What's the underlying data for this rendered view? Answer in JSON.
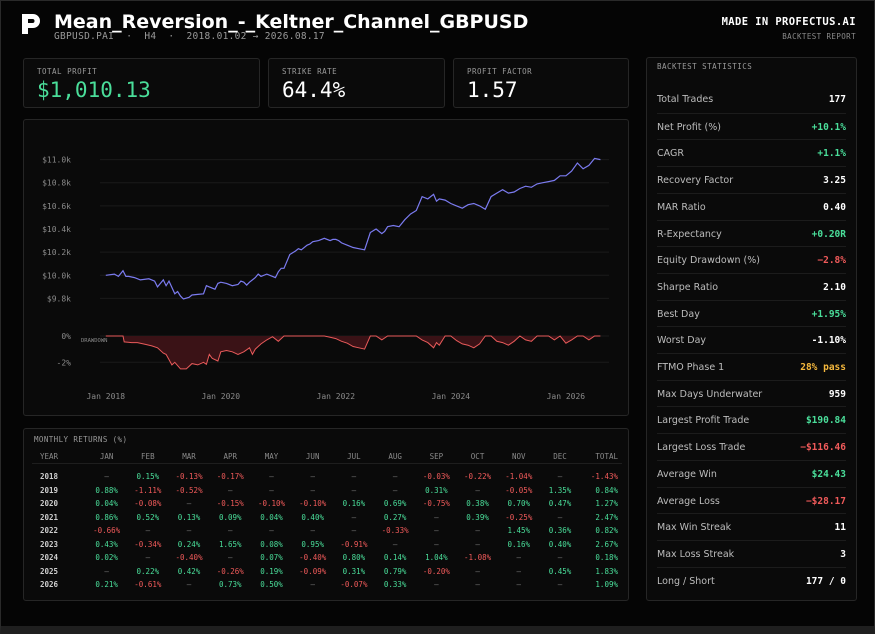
{
  "header": {
    "title": "Mean_Reversion_-_Keltner_Channel_GBPUSD",
    "symbol": "GBPUSD.PAI",
    "timeframe": "H4",
    "dates": "2018.01.02 → 2026.08.17",
    "made_in": "MADE IN PROFECTUS.AI",
    "report": "BACKTEST REPORT"
  },
  "kpis": [
    {
      "label": "TOTAL PROFIT",
      "value": "$1,010.13"
    },
    {
      "label": "STRIKE RATE",
      "value": "64.4%"
    },
    {
      "label": "PROFIT FACTOR",
      "value": "1.57"
    }
  ],
  "colors": {
    "equity": "#7b7bf0",
    "drawdown": "#e85a5a",
    "positive": "#4ade9a",
    "negative": "#f05a5a",
    "warning": "#f5b83d"
  },
  "stats": {
    "title": "BACKTEST STATISTICS",
    "rows": [
      {
        "label": "Total Trades",
        "value": "177",
        "tone": ""
      },
      {
        "label": "Net Profit (%)",
        "value": "+10.1%",
        "tone": "pos"
      },
      {
        "label": "CAGR",
        "value": "+1.1%",
        "tone": "pos"
      },
      {
        "label": "Recovery Factor",
        "value": "3.25",
        "tone": ""
      },
      {
        "label": "MAR Ratio",
        "value": "0.40",
        "tone": ""
      },
      {
        "label": "R-Expectancy",
        "value": "+0.20R",
        "tone": "pos"
      },
      {
        "label": "Equity Drawdown (%)",
        "value": "−2.8%",
        "tone": "neg"
      },
      {
        "label": "Sharpe Ratio",
        "value": "2.10",
        "tone": ""
      },
      {
        "label": "Best Day",
        "value": "+1.95%",
        "tone": "pos"
      },
      {
        "label": "Worst Day",
        "value": "-1.10%",
        "tone": ""
      },
      {
        "label": "FTMO Phase 1",
        "value": "28% pass",
        "tone": "warn"
      },
      {
        "label": "Max Days Underwater",
        "value": "959",
        "tone": ""
      },
      {
        "label": "Largest Profit Trade",
        "value": "$190.84",
        "tone": "pos"
      },
      {
        "label": "Largest Loss Trade",
        "value": "−$116.46",
        "tone": "neg"
      },
      {
        "label": "Average Win",
        "value": "$24.43",
        "tone": "pos"
      },
      {
        "label": "Average Loss",
        "value": "−$28.17",
        "tone": "neg"
      },
      {
        "label": "Max Win Streak",
        "value": "11",
        "tone": ""
      },
      {
        "label": "Max Loss Streak",
        "value": "3",
        "tone": ""
      },
      {
        "label": "Long / Short",
        "value": "177 / 0",
        "tone": ""
      }
    ]
  },
  "chart_data": [
    {
      "type": "line",
      "title": "",
      "xlabel": "",
      "ylabel": "",
      "ylim": [
        9700,
        11100
      ],
      "xlim": [
        2017.9,
        2026.75
      ],
      "x_ticks": [
        "Jan 2018",
        "Jan 2020",
        "Jan 2022",
        "Jan 2024",
        "Jan 2026"
      ],
      "y_ticks": [
        "$9.8k",
        "$10.0k",
        "$10.2k",
        "$10.4k",
        "$10.6k",
        "$10.8k",
        "$11.0k"
      ],
      "grid": true,
      "series": [
        {
          "x": [
            2018.0,
            2018.15,
            2018.22,
            2018.3,
            2018.35,
            2018.4,
            2018.45,
            2018.5,
            2018.6,
            2018.75,
            2018.85,
            2018.9,
            2019.0,
            2019.05,
            2019.1,
            2019.2,
            2019.25,
            2019.3,
            2019.35,
            2019.45,
            2019.5,
            2019.6,
            2019.7,
            2019.75,
            2019.8,
            2019.9,
            2019.95,
            2020.0,
            2020.1,
            2020.2,
            2020.3,
            2020.35,
            2020.4,
            2020.45,
            2020.5,
            2020.6,
            2020.65,
            2020.7,
            2020.8,
            2020.95,
            2021.0,
            2021.05,
            2021.1,
            2021.2,
            2021.3,
            2021.35,
            2021.4,
            2021.5,
            2021.55,
            2021.6,
            2021.7,
            2021.8,
            2021.9,
            2021.95,
            2022.0,
            2022.05,
            2022.1,
            2022.2,
            2022.3,
            2022.4,
            2022.5,
            2022.6,
            2022.7,
            2022.8,
            2022.85,
            2022.9,
            2023.0,
            2023.1,
            2023.2,
            2023.3,
            2023.4,
            2023.5,
            2023.6,
            2023.7,
            2023.75,
            2023.8,
            2023.9,
            2024.0,
            2024.1,
            2024.2,
            2024.3,
            2024.4,
            2024.5,
            2024.6,
            2024.7,
            2024.8,
            2024.9,
            2025.0,
            2025.1,
            2025.2,
            2025.3,
            2025.4,
            2025.5,
            2025.6,
            2025.7,
            2025.8,
            2025.9,
            2026.0,
            2026.1,
            2026.2,
            2026.3,
            2026.4,
            2026.5,
            2026.6
          ],
          "y": [
            10000,
            10010,
            9990,
            10040,
            9990,
            9990,
            9985,
            9980,
            9960,
            9970,
            9950,
            9900,
            9960,
            9910,
            9950,
            9840,
            9860,
            9820,
            9795,
            9810,
            9830,
            9835,
            9840,
            9910,
            9900,
            9880,
            9930,
            9940,
            9930,
            9910,
            9920,
            9950,
            9940,
            9915,
            9940,
            9980,
            10010,
            9990,
            10010,
            9980,
            10030,
            10060,
            10060,
            10180,
            10210,
            10230,
            10220,
            10260,
            10270,
            10290,
            10300,
            10320,
            10300,
            10310,
            10310,
            10300,
            10280,
            10260,
            10240,
            10230,
            10220,
            10370,
            10400,
            10360,
            10380,
            10420,
            10430,
            10420,
            10480,
            10530,
            10560,
            10680,
            10660,
            10700,
            10640,
            10660,
            10650,
            10620,
            10600,
            10580,
            10610,
            10620,
            10600,
            10570,
            10680,
            10710,
            10740,
            10710,
            10720,
            10750,
            10770,
            10760,
            10790,
            10800,
            10810,
            10820,
            10860,
            10860,
            10900,
            10970,
            10920,
            10950,
            11010,
            11000
          ]
        }
      ]
    },
    {
      "type": "area",
      "title": "",
      "ylim": [
        -3.5,
        0
      ],
      "y_ticks": [
        "0%",
        "-2%"
      ],
      "series": [
        {
          "name": "DRAWDOWN",
          "x": [
            2018.0,
            2018.3,
            2018.32,
            2018.45,
            2018.55,
            2018.6,
            2018.7,
            2018.8,
            2018.9,
            2019.0,
            2019.05,
            2019.15,
            2019.2,
            2019.3,
            2019.4,
            2019.5,
            2019.6,
            2019.7,
            2019.75,
            2019.8,
            2019.85,
            2019.95,
            2020.0,
            2020.1,
            2020.2,
            2020.3,
            2020.4,
            2020.5,
            2020.55,
            2020.6,
            2020.7,
            2020.8,
            2020.9,
            2021.0,
            2021.05,
            2021.1,
            2021.2,
            2021.3,
            2021.4,
            2021.5,
            2021.6,
            2021.7,
            2021.8,
            2021.9,
            2022.0,
            2022.1,
            2022.2,
            2022.3,
            2022.4,
            2022.5,
            2022.6,
            2022.7,
            2022.8,
            2022.9,
            2023.0,
            2023.1,
            2023.2,
            2023.3,
            2023.4,
            2023.5,
            2023.6,
            2023.7,
            2023.75,
            2023.8,
            2023.9,
            2024.0,
            2024.1,
            2024.2,
            2024.3,
            2024.4,
            2024.5,
            2024.6,
            2024.7,
            2024.8,
            2024.9,
            2025.0,
            2025.1,
            2025.2,
            2025.3,
            2025.4,
            2025.5,
            2025.6,
            2025.7,
            2025.8,
            2025.9,
            2026.0,
            2026.1,
            2026.2,
            2026.3,
            2026.4,
            2026.5,
            2026.6
          ],
          "y": [
            0,
            0,
            -0.45,
            -0.5,
            -0.5,
            -0.55,
            -0.65,
            -0.75,
            -0.9,
            -1.3,
            -1.4,
            -2.2,
            -2.0,
            -2.5,
            -2.5,
            -2.1,
            -2.2,
            -2.0,
            -2.15,
            -1.4,
            -1.7,
            -1.9,
            -1.2,
            -1.1,
            -1.2,
            -1.4,
            -1.2,
            -0.9,
            -1.4,
            -1.0,
            -0.6,
            -0.3,
            -0.05,
            -0.4,
            -0.2,
            0,
            0,
            0,
            0,
            0,
            0,
            0,
            0,
            -0.1,
            -0.2,
            -0.4,
            -0.55,
            -0.8,
            -0.9,
            -1.0,
            0,
            0,
            -0.3,
            0,
            0,
            0,
            0,
            0,
            0,
            -0.3,
            -0.5,
            -0.9,
            -0.5,
            -0.7,
            0,
            0,
            -0.35,
            -0.6,
            -0.7,
            -0.9,
            -0.6,
            0,
            0,
            -0.4,
            -0.5,
            -0.7,
            -0.4,
            0,
            -0.3,
            -0.4,
            0,
            0,
            0,
            -0.3,
            0,
            -0.55,
            -0.3,
            0,
            0,
            -0.3,
            0,
            0
          ]
        }
      ]
    },
    {
      "type": "table",
      "title": "MONTHLY RETURNS (%)",
      "headers": [
        "YEAR",
        "JAN",
        "FEB",
        "MAR",
        "APR",
        "MAY",
        "JUN",
        "JUL",
        "AUG",
        "SEP",
        "OCT",
        "NOV",
        "DEC",
        "TOTAL"
      ],
      "rows": [
        [
          "2018",
          "—",
          "0.15%",
          "-0.13%",
          "-0.17%",
          "—",
          "—",
          "—",
          "—",
          "-0.03%",
          "-0.22%",
          "-1.04%",
          "—",
          "-1.43%"
        ],
        [
          "2019",
          "0.88%",
          "-1.11%",
          "-0.52%",
          "—",
          "—",
          "—",
          "—",
          "—",
          "0.31%",
          "—",
          "-0.05%",
          "1.35%",
          "0.84%"
        ],
        [
          "2020",
          "0.04%",
          "-0.08%",
          "—",
          "-0.15%",
          "-0.10%",
          "-0.10%",
          "0.16%",
          "0.69%",
          "-0.75%",
          "0.38%",
          "0.70%",
          "0.47%",
          "1.27%"
        ],
        [
          "2021",
          "0.86%",
          "0.52%",
          "0.13%",
          "0.09%",
          "0.04%",
          "0.40%",
          "—",
          "0.27%",
          "—",
          "0.39%",
          "-0.25%",
          "—",
          "2.47%"
        ],
        [
          "2022",
          "-0.66%",
          "—",
          "—",
          "—",
          "—",
          "—",
          "—",
          "-0.33%",
          "—",
          "—",
          "1.45%",
          "0.36%",
          "0.82%"
        ],
        [
          "2023",
          "0.43%",
          "-0.34%",
          "0.24%",
          "1.65%",
          "0.08%",
          "0.95%",
          "-0.91%",
          "—",
          "—",
          "—",
          "0.16%",
          "0.40%",
          "2.67%"
        ],
        [
          "2024",
          "0.02%",
          "—",
          "-0.40%",
          "—",
          "0.07%",
          "-0.40%",
          "0.80%",
          "0.14%",
          "1.04%",
          "-1.08%",
          "—",
          "—",
          "0.18%"
        ],
        [
          "2025",
          "—",
          "0.22%",
          "0.42%",
          "-0.26%",
          "0.19%",
          "-0.09%",
          "0.31%",
          "0.79%",
          "-0.20%",
          "—",
          "—",
          "0.45%",
          "1.83%"
        ],
        [
          "2026",
          "0.21%",
          "-0.61%",
          "—",
          "0.73%",
          "0.50%",
          "—",
          "-0.07%",
          "0.33%",
          "—",
          "—",
          "—",
          "—",
          "1.09%"
        ]
      ]
    }
  ]
}
